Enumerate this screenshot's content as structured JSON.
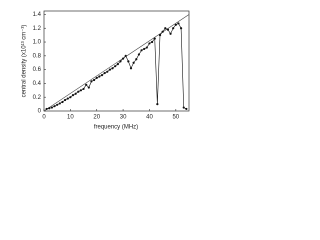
{
  "chart_data": {
    "type": "line",
    "x_label": "frequency (MHz)",
    "y_label": "central density (x10¹³ cm⁻³)",
    "x": [
      1,
      2,
      3,
      4,
      5,
      6,
      7,
      8,
      9,
      10,
      11,
      12,
      13,
      14,
      15,
      16,
      17,
      18,
      19,
      20,
      21,
      22,
      23,
      24,
      25,
      26,
      27,
      28,
      29,
      30,
      31,
      32,
      33,
      34,
      35,
      36,
      37,
      38,
      39,
      40,
      41,
      42,
      43,
      44,
      45,
      46,
      47,
      48,
      49,
      50,
      51,
      52,
      53,
      54
    ],
    "series": [
      {
        "color": "#111111",
        "values": [
          0.03,
          0.04,
          0.05,
          0.07,
          0.09,
          0.11,
          0.13,
          0.16,
          0.18,
          0.2,
          0.23,
          0.25,
          0.28,
          0.3,
          0.32,
          0.38,
          0.34,
          0.43,
          0.45,
          0.48,
          0.5,
          0.52,
          0.55,
          0.57,
          0.6,
          0.62,
          0.65,
          0.68,
          0.72,
          0.76,
          0.8,
          0.72,
          0.62,
          0.7,
          0.75,
          0.82,
          0.88,
          0.9,
          0.92,
          0.98,
          1.0,
          1.05,
          0.1,
          1.1,
          1.15,
          1.2,
          1.18,
          1.12,
          1.2,
          1.25,
          1.27,
          1.2,
          0.05,
          0.03
        ]
      }
    ],
    "reference_line": {
      "x": [
        0,
        55
      ],
      "y": [
        0,
        1.4
      ],
      "color": "#444444"
    },
    "xlim": [
      0,
      55
    ],
    "ylim": [
      0,
      1.45
    ],
    "xticks": [
      0,
      10,
      20,
      30,
      40,
      50
    ],
    "yticks": [
      0,
      {
        "value": 0.2,
        "label": "0.2"
      },
      {
        "value": 0.4,
        "label": "0.4"
      },
      {
        "value": 0.6,
        "label": "0.6"
      },
      {
        "value": 0.8,
        "label": "0.8"
      },
      {
        "value": 1.0,
        "label": "1.0"
      },
      {
        "value": 1.2,
        "label": "1.2"
      },
      {
        "value": 1.4,
        "label": "1.4"
      }
    ]
  }
}
